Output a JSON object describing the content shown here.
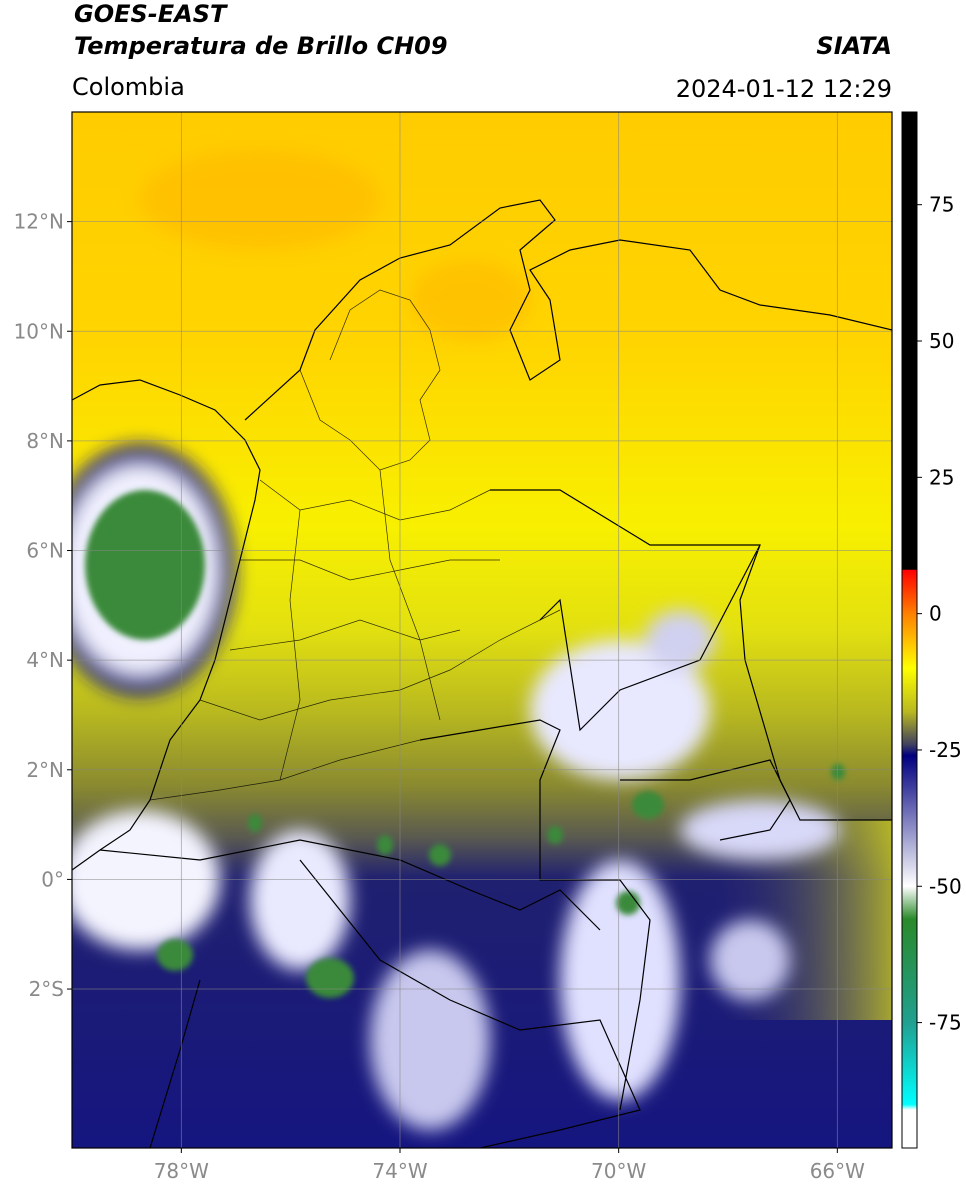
{
  "header": {
    "title": [
      "GOES-EAST",
      "Temperatura de Brillo CH09"
    ],
    "source": "SIATA",
    "region": "Colombia",
    "timestamp": "2024-01-12 12:29"
  },
  "map": {
    "lonlim": [
      -80,
      -65
    ],
    "latlim": [
      -4.9,
      14
    ],
    "lon_ticks": [
      {
        "value": -78,
        "label": "78°W"
      },
      {
        "value": -74,
        "label": "74°W"
      },
      {
        "value": -70,
        "label": "70°W"
      },
      {
        "value": -66,
        "label": "66°W"
      }
    ],
    "lat_ticks": [
      {
        "value": 12,
        "label": "12°N"
      },
      {
        "value": 10,
        "label": "10°N"
      },
      {
        "value": 8,
        "label": "8°N"
      },
      {
        "value": 6,
        "label": "6°N"
      },
      {
        "value": 4,
        "label": "4°N"
      },
      {
        "value": 2,
        "label": "2°N"
      },
      {
        "value": 0,
        "label": "0°"
      },
      {
        "value": -2,
        "label": "2°S"
      }
    ],
    "grid": true
  },
  "colorbar": {
    "lim": [
      -98,
      92
    ],
    "ticks": [
      75,
      50,
      25,
      0,
      -25,
      -50,
      -75
    ],
    "stops": [
      {
        "value": 92,
        "color": "#000000"
      },
      {
        "value": 8.1,
        "color": "#000000"
      },
      {
        "value": 8,
        "color": "#ff0000"
      },
      {
        "value": 0,
        "color": "#ff8000"
      },
      {
        "value": -10,
        "color": "#ffff00"
      },
      {
        "value": -18,
        "color": "#b8b820"
      },
      {
        "value": -24,
        "color": "#404060"
      },
      {
        "value": -26,
        "color": "#000080"
      },
      {
        "value": -50,
        "color": "#ffffff"
      },
      {
        "value": -56,
        "color": "#2a8a2a"
      },
      {
        "value": -75,
        "color": "#20a090"
      },
      {
        "value": -90,
        "color": "#00ffff"
      },
      {
        "value": -91,
        "color": "#ffffff"
      },
      {
        "value": -98,
        "color": "#ffffff"
      }
    ]
  }
}
